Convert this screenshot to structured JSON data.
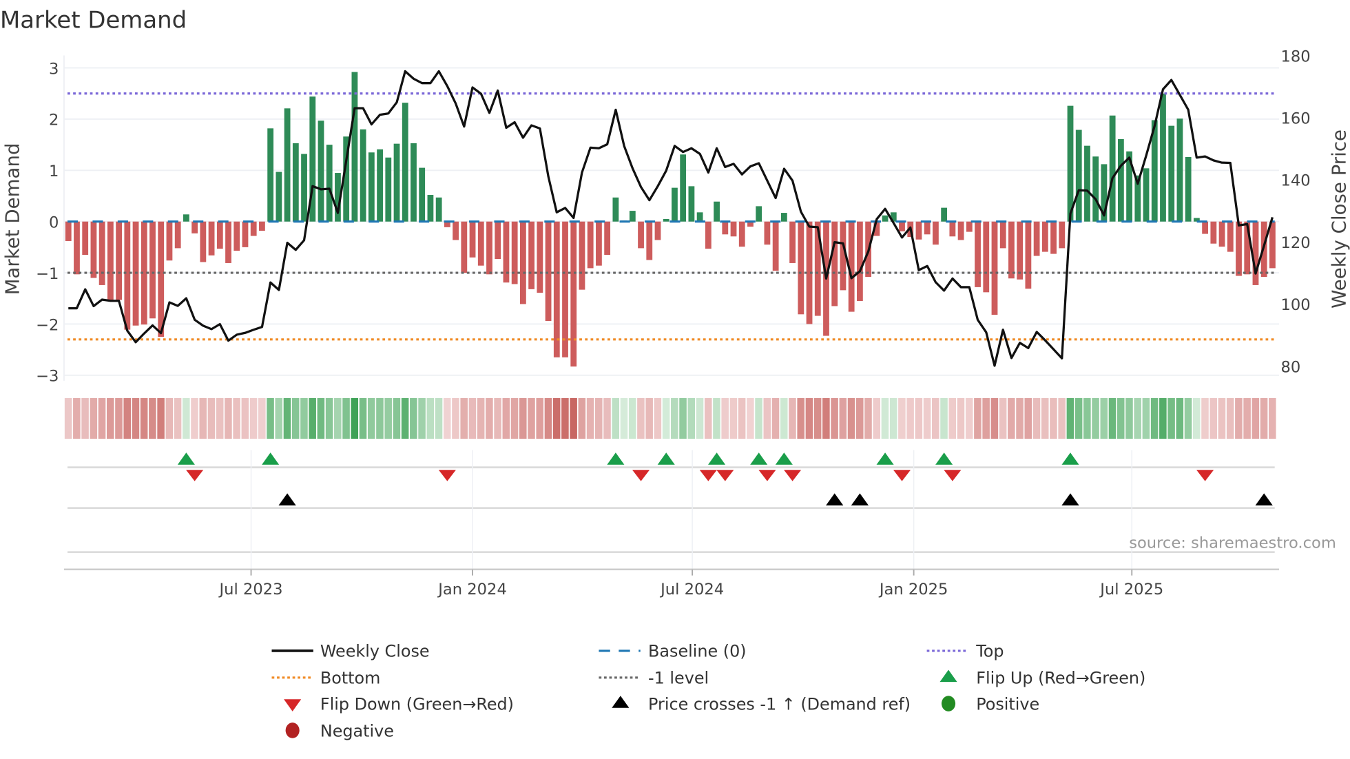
{
  "chart_data": {
    "type": "bar",
    "title": "Market Demand",
    "ylabel": "Market Demand",
    "ylabel_right": "Weekly Close Price",
    "ylim": [
      -3,
      3
    ],
    "ylim_right": [
      80,
      180
    ],
    "y_ticks": [
      {
        "v": 3,
        "label": "3"
      },
      {
        "v": 2,
        "label": "2"
      },
      {
        "v": 1,
        "label": "1"
      },
      {
        "v": 0,
        "label": "0"
      },
      {
        "v": -1,
        "label": "−1"
      },
      {
        "v": -2,
        "label": "−2"
      },
      {
        "v": -3,
        "label": "−3"
      }
    ],
    "y_ticks_right": [
      {
        "v": 180,
        "label": "180"
      },
      {
        "v": 160,
        "label": "160"
      },
      {
        "v": 140,
        "label": "140"
      },
      {
        "v": 120,
        "label": "120"
      },
      {
        "v": 100,
        "label": "100"
      },
      {
        "v": 80,
        "label": "80"
      }
    ],
    "x_unit": "weeks",
    "x_ticks": [
      {
        "week": 21.7,
        "label": "Jul 2023"
      },
      {
        "week": 48.0,
        "label": "Jan 2024"
      },
      {
        "week": 74.1,
        "label": "Jul 2024"
      },
      {
        "week": 100.4,
        "label": "Jan 2025"
      },
      {
        "week": 126.3,
        "label": "Jul 2025"
      }
    ],
    "levels": {
      "top": 2.5,
      "bottom": -2.3,
      "minus_one": -1,
      "baseline": 0
    },
    "demand": [
      -0.38,
      -1.03,
      -0.65,
      -1.1,
      -1.24,
      -1.53,
      -1.53,
      -2.11,
      -2.03,
      -2.01,
      -1.89,
      -2.25,
      -0.76,
      -0.52,
      0.14,
      -0.23,
      -0.79,
      -0.66,
      -0.53,
      -0.81,
      -0.57,
      -0.5,
      -0.28,
      -0.18,
      1.82,
      0.97,
      2.21,
      1.53,
      1.32,
      2.44,
      1.97,
      1.5,
      0.95,
      1.66,
      2.92,
      1.8,
      1.35,
      1.41,
      1.25,
      1.52,
      2.32,
      1.53,
      1.05,
      0.52,
      0.47,
      -0.11,
      -0.36,
      -1.0,
      -0.7,
      -0.86,
      -1.03,
      -0.73,
      -1.19,
      -1.22,
      -1.61,
      -1.32,
      -1.39,
      -1.94,
      -2.65,
      -2.65,
      -2.83,
      -1.33,
      -0.91,
      -0.86,
      -0.65,
      0.47,
      0.02,
      0.21,
      -0.52,
      -0.75,
      -0.36,
      0.05,
      0.66,
      1.31,
      0.69,
      0.18,
      -0.53,
      0.39,
      -0.25,
      -0.29,
      -0.49,
      -0.1,
      0.3,
      -0.45,
      -0.96,
      0.17,
      -0.81,
      -1.81,
      -2.0,
      -1.84,
      -2.23,
      -1.65,
      -1.34,
      -1.76,
      -1.55,
      -1.08,
      -0.28,
      0.12,
      0.18,
      -0.19,
      -0.3,
      -0.35,
      -0.25,
      -0.45,
      0.27,
      -0.29,
      -0.36,
      -0.2,
      -1.28,
      -1.38,
      -1.82,
      -0.52,
      -1.11,
      -1.13,
      -1.31,
      -0.67,
      -0.59,
      -0.63,
      -0.52,
      2.26,
      1.79,
      1.48,
      1.27,
      1.12,
      2.07,
      1.61,
      1.37,
      0.9,
      1.04,
      1.98,
      2.5,
      1.87,
      2.01,
      1.26,
      0.07,
      -0.24,
      -0.43,
      -0.49,
      -0.59,
      -1.06,
      -1.03,
      -1.24,
      -1.08,
      -0.91
    ],
    "weekly_close": [
      98.6,
      98.6,
      104.7,
      99.3,
      101.4,
      101.0,
      101.0,
      91.4,
      87.7,
      90.5,
      93.1,
      90.6,
      100.5,
      99.4,
      101.8,
      94.9,
      93.0,
      91.9,
      93.5,
      88.2,
      90.1,
      90.7,
      91.7,
      92.6,
      106.9,
      104.5,
      119.7,
      117.4,
      120.5,
      137.9,
      136.9,
      137.1,
      129.3,
      146.1,
      163.0,
      163.0,
      157.8,
      160.9,
      161.3,
      164.9,
      174.9,
      172.5,
      171.1,
      171.1,
      174.9,
      170.1,
      164.5,
      157.1,
      169.7,
      167.7,
      161.5,
      168.7,
      156.7,
      158.5,
      153.5,
      157.5,
      156.5,
      141.1,
      129.5,
      130.9,
      127.7,
      142.3,
      150.3,
      150.1,
      151.4,
      162.5,
      150.9,
      143.7,
      137.7,
      133.4,
      137.9,
      142.9,
      150.9,
      148.9,
      150.1,
      148.3,
      142.3,
      150.1,
      144.1,
      145.1,
      141.7,
      144.3,
      145.3,
      139.7,
      134.1,
      143.5,
      139.7,
      129.7,
      124.9,
      124.7,
      108.2,
      119.9,
      119.5,
      108.3,
      110.5,
      116.9,
      127.3,
      130.6,
      126.1,
      121.4,
      124.6,
      110.9,
      112.2,
      107.0,
      104.3,
      108.2,
      105.4,
      105.4,
      94.9,
      90.9,
      80.1,
      91.7,
      82.6,
      87.5,
      85.8,
      91.0,
      88.3,
      85.4,
      82.5,
      129.1,
      136.6,
      136.5,
      133.7,
      128.5,
      140.5,
      144.5,
      147.1,
      138.7,
      147.7,
      157.3,
      169.1,
      172.1,
      167.3,
      162.5,
      147.1,
      147.5,
      146.2,
      145.5,
      145.4,
      125.3,
      125.7,
      109.8,
      118.8,
      127.9
    ],
    "flip_up_weeks": [
      14,
      24,
      65,
      71,
      77,
      82,
      85,
      97,
      104,
      119
    ],
    "flip_down_weeks": [
      15,
      45,
      68,
      76,
      78,
      83,
      86,
      99,
      105,
      135
    ],
    "price_cross_weeks": [
      26,
      91,
      94,
      119,
      142
    ],
    "legend_position": "bottom-center"
  },
  "colors": {
    "positive_bar": "#2e8b57",
    "negative_bar": "#cd5c5c",
    "price_line": "#111111",
    "baseline": "#1f77b4",
    "top": "#7b68d8",
    "bottom": "#f08a24",
    "minus_one": "#666666",
    "flip_up": "#1a9e4a",
    "flip_down": "#d62728",
    "price_cross": "#000000",
    "positive_dot": "#228b22",
    "negative_dot": "#b22222"
  },
  "legend": {
    "weekly_close": "Weekly Close",
    "baseline": "Baseline (0)",
    "top": "Top",
    "bottom": "Bottom",
    "minus_one": "-1 level",
    "flip_up": "Flip Up (Red→Green)",
    "flip_down": "Flip Down (Green→Red)",
    "price_cross": "Price crosses -1 ↑ (Demand ref)",
    "positive": "Positive",
    "negative": "Negative"
  },
  "source": "source: sharemaestro.com"
}
